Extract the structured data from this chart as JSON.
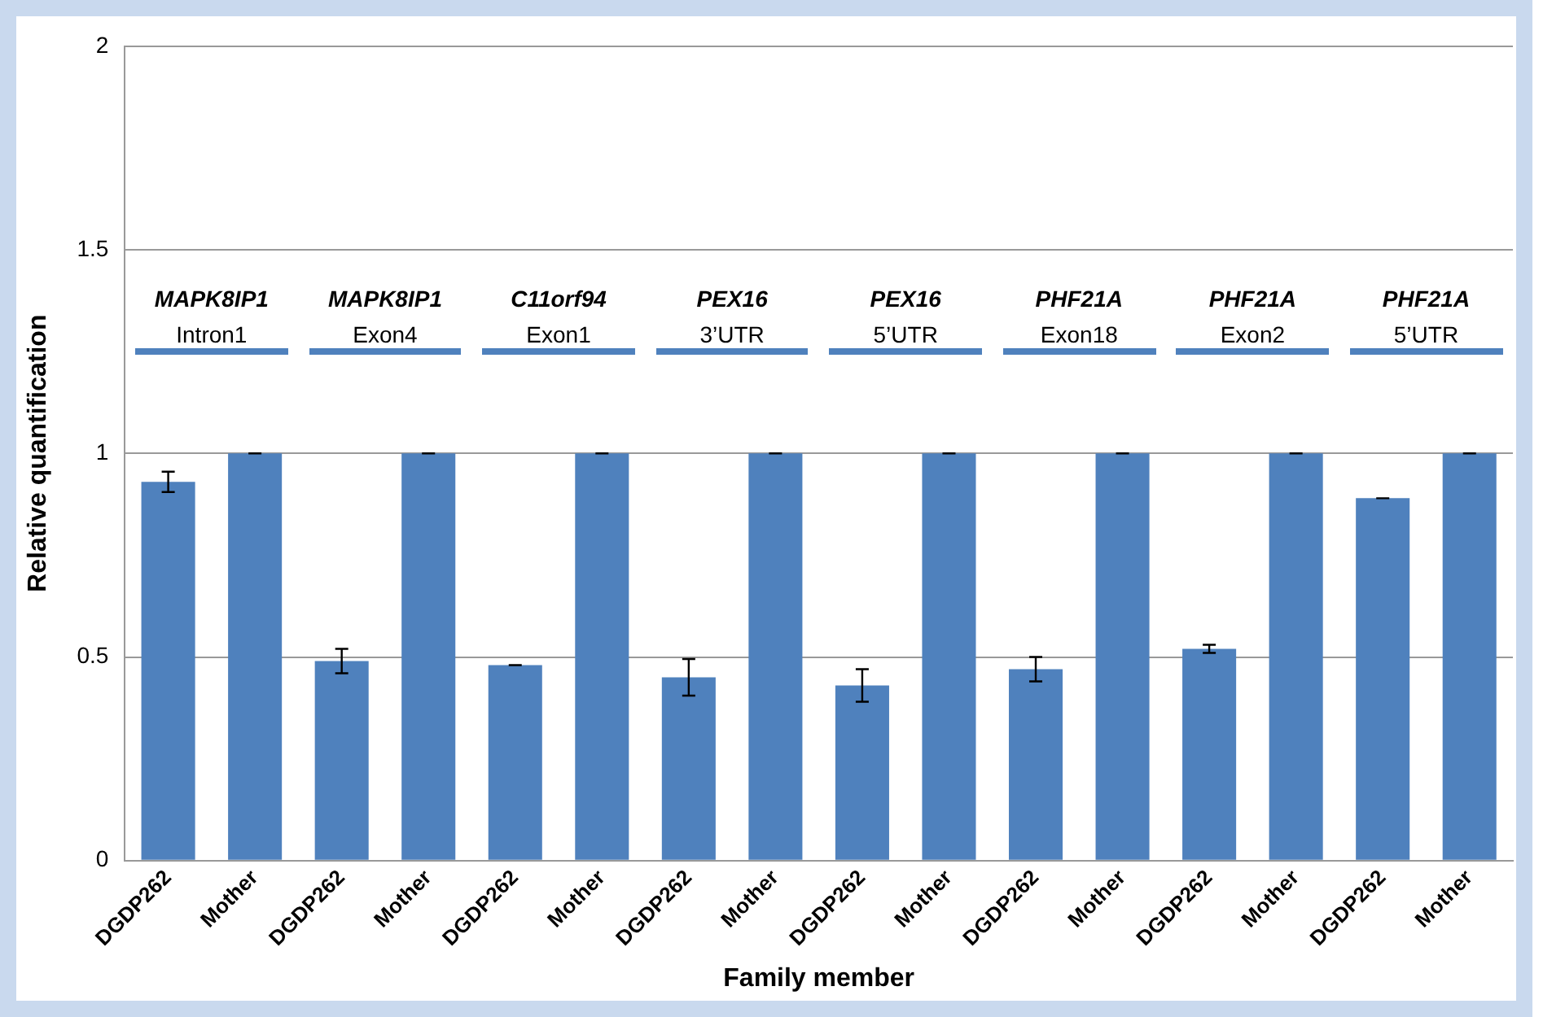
{
  "chart_data": {
    "type": "bar",
    "xlabel": "Family member",
    "ylabel": "Relative quantification",
    "categories": [
      "DGDP262",
      "Mother",
      "DGDP262",
      "Mother",
      "DGDP262",
      "Mother",
      "DGDP262",
      "Mother",
      "DGDP262",
      "Mother",
      "DGDP262",
      "Mother",
      "DGDP262",
      "Mother",
      "DGDP262",
      "Mother"
    ],
    "values": [
      0.93,
      1,
      0.49,
      1,
      0.48,
      1,
      0.45,
      1,
      0.43,
      1,
      0.47,
      1,
      0.52,
      1,
      0.89,
      1
    ],
    "errors": [
      0.025,
      0,
      0.03,
      0,
      0,
      0,
      0.045,
      0,
      0.04,
      0,
      0.03,
      0,
      0.01,
      0,
      0,
      0
    ],
    "color": "#4f81bd",
    "ylim": [
      0,
      2
    ],
    "yticks": [
      0,
      0.5,
      1,
      1.5,
      2
    ],
    "grid": "y",
    "annotations": [
      "MAPK8IP1\nIntron1",
      "MAPK8IP1\nExon4",
      "C11orf94\nExon1",
      "PEX16\n3’UTR",
      "PEX16\n5’UTR",
      "PHF21A\nExon18",
      "PHF21A\nExon2",
      "PHF21A\n5’UTR"
    ]
  }
}
